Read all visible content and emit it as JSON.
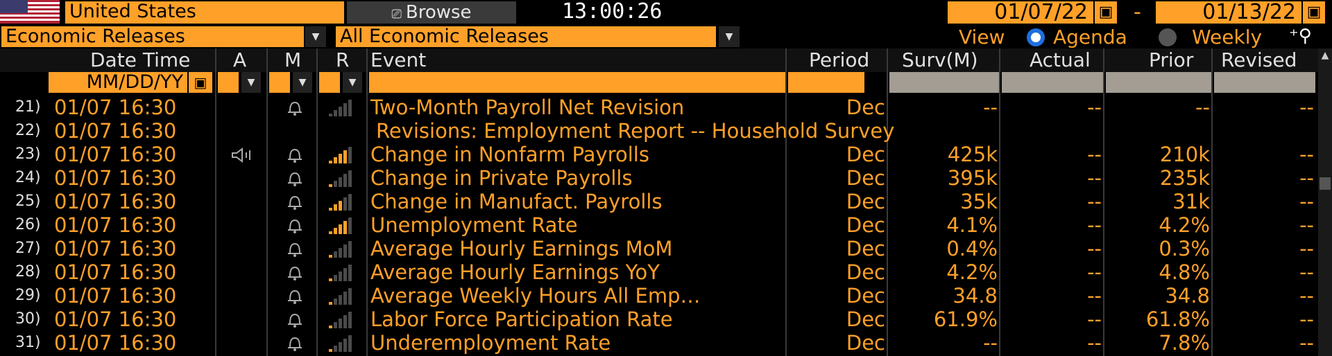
{
  "header": {
    "country": "United States",
    "browse_label": "Browse",
    "clock": "13:00:26",
    "start_date": "01/07/22",
    "end_date": "01/13/22",
    "date_separator": "-"
  },
  "filters": {
    "category": "Economic Releases",
    "subcategory": "All Economic Releases"
  },
  "view": {
    "label": "View",
    "option_agenda": "Agenda",
    "option_weekly": "Weekly",
    "selected": "Agenda"
  },
  "columns": {
    "datetime": "Date Time",
    "a": "A",
    "m": "M",
    "r": "R",
    "event": "Event",
    "period": "Period",
    "survey": "Surv(M)",
    "actual": "Actual",
    "prior": "Prior",
    "revised": "Revised"
  },
  "date_filter_placeholder": "MM/DD/YY",
  "colors": {
    "accent": "#ffa028",
    "background": "#000000",
    "relevance_on": "#ffa028",
    "relevance_off": "#4a4a4a"
  },
  "rows": [
    {
      "num": "21)",
      "dt": "01/07 16:30",
      "event": "Two-Month Payroll Net Revision",
      "period": "Dec",
      "survey": "--",
      "actual": "--",
      "prior": "--",
      "revised": "--",
      "bell": true,
      "speaker": false,
      "relevance": 0,
      "indent": false
    },
    {
      "num": "22)",
      "dt": "01/07 16:30",
      "event": "Revisions: Employment Report -- Household Survey",
      "period": "",
      "survey": "",
      "actual": "",
      "prior": "",
      "revised": "",
      "bell": false,
      "speaker": false,
      "relevance": -1,
      "indent": true
    },
    {
      "num": "23)",
      "dt": "01/07 16:30",
      "event": "Change in Nonfarm Payrolls",
      "period": "Dec",
      "survey": "425k",
      "actual": "--",
      "prior": "210k",
      "revised": "--",
      "bell": true,
      "speaker": true,
      "relevance": 4
    },
    {
      "num": "24)",
      "dt": "01/07 16:30",
      "event": "Change in Private Payrolls",
      "period": "Dec",
      "survey": "395k",
      "actual": "--",
      "prior": "235k",
      "revised": "--",
      "bell": true,
      "speaker": false,
      "relevance": 1
    },
    {
      "num": "25)",
      "dt": "01/07 16:30",
      "event": "Change in Manufact. Payrolls",
      "period": "Dec",
      "survey": "35k",
      "actual": "--",
      "prior": "31k",
      "revised": "--",
      "bell": true,
      "speaker": false,
      "relevance": 3
    },
    {
      "num": "26)",
      "dt": "01/07 16:30",
      "event": "Unemployment Rate",
      "period": "Dec",
      "survey": "4.1%",
      "actual": "--",
      "prior": "4.2%",
      "revised": "--",
      "bell": true,
      "speaker": false,
      "relevance": 4
    },
    {
      "num": "27)",
      "dt": "01/07 16:30",
      "event": "Average Hourly Earnings MoM",
      "period": "Dec",
      "survey": "0.4%",
      "actual": "--",
      "prior": "0.3%",
      "revised": "--",
      "bell": true,
      "speaker": false,
      "relevance": 1
    },
    {
      "num": "28)",
      "dt": "01/07 16:30",
      "event": "Average Hourly Earnings YoY",
      "period": "Dec",
      "survey": "4.2%",
      "actual": "--",
      "prior": "4.8%",
      "revised": "--",
      "bell": true,
      "speaker": false,
      "relevance": 1
    },
    {
      "num": "29)",
      "dt": "01/07 16:30",
      "event": "Average Weekly Hours All Emp…",
      "period": "Dec",
      "survey": "34.8",
      "actual": "--",
      "prior": "34.8",
      "revised": "--",
      "bell": true,
      "speaker": false,
      "relevance": 1
    },
    {
      "num": "30)",
      "dt": "01/07 16:30",
      "event": "Labor Force Participation Rate",
      "period": "Dec",
      "survey": "61.9%",
      "actual": "--",
      "prior": "61.8%",
      "revised": "--",
      "bell": true,
      "speaker": false,
      "relevance": 1
    },
    {
      "num": "31)",
      "dt": "01/07 16:30",
      "event": "Underemployment Rate",
      "period": "Dec",
      "survey": "--",
      "actual": "--",
      "prior": "7.8%",
      "revised": "--",
      "bell": true,
      "speaker": false,
      "relevance": 1
    }
  ]
}
